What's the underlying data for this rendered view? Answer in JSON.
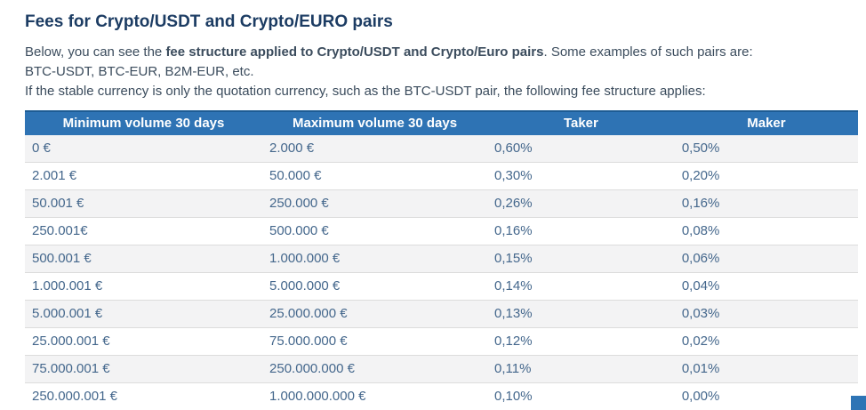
{
  "page": {
    "title": "Fees for Crypto/USDT and Crypto/EURO pairs",
    "intro_pre": "Below, you can see the ",
    "intro_bold": "fee structure applied to Crypto/USDT and Crypto/Euro pairs",
    "intro_post": ". Some examples of such pairs are:",
    "intro_line2": "BTC-USDT, BTC-EUR, B2M-EUR, etc.",
    "intro_line3": "If the stable currency is only the quotation currency, such as the BTC-USDT pair, the following fee structure applies:"
  },
  "table": {
    "headers": [
      "Minimum volume 30 days",
      "Maximum volume 30 days",
      "Taker",
      "Maker"
    ],
    "rows": [
      [
        "0 €",
        "2.000 €",
        "0,60%",
        "0,50%"
      ],
      [
        "2.001 €",
        "50.000 €",
        "0,30%",
        "0,20%"
      ],
      [
        "50.001 €",
        "250.000 €",
        "0,26%",
        "0,16%"
      ],
      [
        "250.001€",
        "500.000 €",
        "0,16%",
        "0,08%"
      ],
      [
        "500.001 €",
        "1.000.000 €",
        "0,15%",
        "0,06%"
      ],
      [
        "1.000.001 €",
        "5.000.000 €",
        "0,14%",
        "0,04%"
      ],
      [
        "5.000.001 €",
        "25.000.000 €",
        "0,13%",
        "0,03%"
      ],
      [
        "25.000.001 €",
        "75.000.000 €",
        "0,12%",
        "0,02%"
      ],
      [
        "75.000.001 €",
        "250.000.000 €",
        "0,11%",
        "0,01%"
      ],
      [
        "250.000.001 €",
        "1.000.000.000 €",
        "0,10%",
        "0,00%"
      ]
    ]
  },
  "colors": {
    "header_bg": "#2e73b4",
    "header_border_top": "#1e5c94",
    "header_text": "#ffffff",
    "row_alt_bg": "#f3f3f4",
    "row_border": "#dcdcdc",
    "cell_text": "#44678c",
    "title_text": "#1c3c63",
    "body_text": "#3b4c5d",
    "corner_accent": "#2e74b5"
  }
}
